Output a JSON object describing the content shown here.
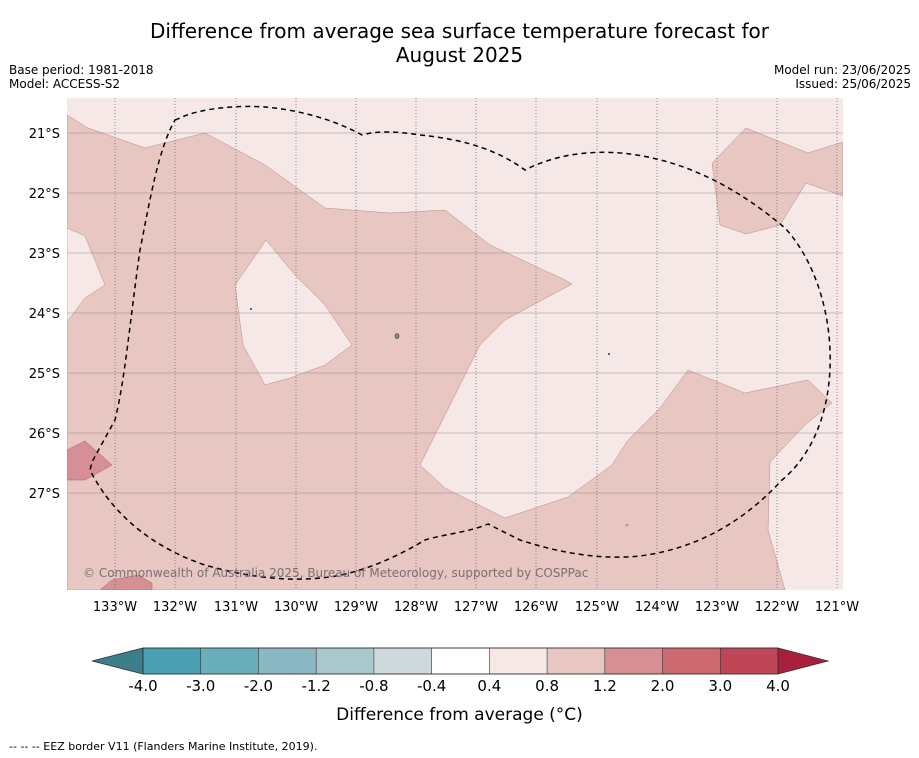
{
  "title_line1": "Difference from average sea surface temperature forecast for",
  "title_line2": "August 2025",
  "meta_left": {
    "base_period": "Base period: 1981-2018",
    "model": "Model: ACCESS-S2"
  },
  "meta_right": {
    "model_run": "Model run: 23/06/2025",
    "issued": "Issued: 25/06/2025"
  },
  "copyright": "© Commonwealth of Australia 2025, Bureau of Meteorology, supported by COSPPac",
  "lat_labels": [
    "21°S",
    "22°S",
    "23°S",
    "24°S",
    "25°S",
    "26°S",
    "27°S"
  ],
  "lon_labels": [
    "133°W",
    "132°W",
    "131°W",
    "130°W",
    "129°W",
    "128°W",
    "127°W",
    "126°W",
    "125°W",
    "124°W",
    "123°W",
    "122°W",
    "121°W"
  ],
  "colorbar": {
    "ticks": [
      "-4.0",
      "-3.0",
      "-2.0",
      "-1.2",
      "-0.8",
      "-0.4",
      "0.4",
      "0.8",
      "1.2",
      "2.0",
      "3.0",
      "4.0"
    ],
    "colors": [
      "#4aa0b2",
      "#6aaebb",
      "#8ab7c2",
      "#a8c8cc",
      "#cfd8da",
      "#ffffff",
      "#f5e8e7",
      "#e8c6c2",
      "#d68f95",
      "#cc6971",
      "#c04556"
    ],
    "low_extension_color": "#3a7f8a",
    "high_extension_color": "#a8213c",
    "label": "Difference from average (°C)"
  },
  "map_colors": {
    "light": "#f5e8e7",
    "medium": "#e8c6c2",
    "strong": "#d68f95"
  },
  "footer": "--  --  -- EEZ border V11 (Flanders Marine Institute, 2019)."
}
